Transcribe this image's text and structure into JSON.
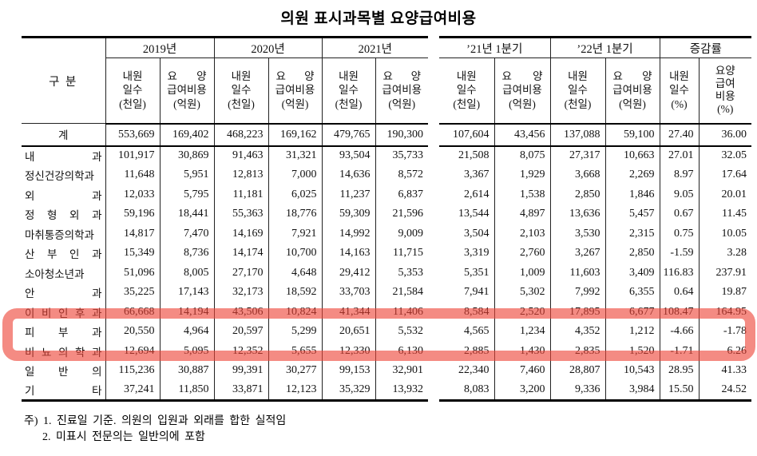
{
  "title": "의원 표시과목별 요양급여비용",
  "table": {
    "row_header": "구 분",
    "groups": [
      "2019년",
      "2020년",
      "2021년",
      "’21년 1분기",
      "’22년 1분기",
      "증감률"
    ],
    "sub_visit": [
      "내원",
      "일수",
      "(천일)"
    ],
    "sub_cost": [
      "요 양",
      "급여비용",
      "(억원)"
    ],
    "sub_visit_pct": [
      "내원",
      "일수",
      "(%)"
    ],
    "sub_cost_pct": [
      "요양",
      "급여",
      "비용",
      "(%)"
    ],
    "total_label": "계",
    "total_values": [
      "553,669",
      "169,402",
      "468,223",
      "169,162",
      "479,765",
      "190,300",
      "107,604",
      "43,456",
      "137,088",
      "59,100",
      "27.40",
      "36.00"
    ],
    "rows": [
      {
        "label": "내 과",
        "values": [
          "101,917",
          "30,869",
          "91,463",
          "31,321",
          "93,504",
          "35,733",
          "21,508",
          "8,075",
          "27,317",
          "10,663",
          "27.01",
          "32.05"
        ]
      },
      {
        "label": "정신건강의학과",
        "values": [
          "11,648",
          "5,951",
          "12,813",
          "7,000",
          "14,636",
          "8,572",
          "3,367",
          "1,929",
          "3,668",
          "2,269",
          "8.97",
          "17.64"
        ]
      },
      {
        "label": "외 과",
        "values": [
          "12,033",
          "5,795",
          "11,181",
          "6,025",
          "11,237",
          "6,837",
          "2,614",
          "1,538",
          "2,850",
          "1,846",
          "9.05",
          "20.01"
        ]
      },
      {
        "label": "정 형 외 과",
        "values": [
          "59,196",
          "18,441",
          "55,363",
          "18,776",
          "59,309",
          "21,596",
          "13,544",
          "4,897",
          "13,636",
          "5,457",
          "0.67",
          "11.45"
        ]
      },
      {
        "label": "마취통증의학과",
        "values": [
          "14,817",
          "7,470",
          "14,169",
          "7,921",
          "14,992",
          "9,009",
          "3,504",
          "2,103",
          "3,530",
          "2,315",
          "0.75",
          "10.05"
        ]
      },
      {
        "label": "산 부 인 과",
        "values": [
          "15,349",
          "8,736",
          "14,174",
          "10,700",
          "14,163",
          "11,715",
          "3,319",
          "2,760",
          "3,267",
          "2,850",
          "-1.59",
          "3.28"
        ]
      },
      {
        "label": "소아청소년과",
        "values": [
          "51,096",
          "8,005",
          "27,170",
          "4,648",
          "29,412",
          "5,353",
          "5,351",
          "1,009",
          "11,603",
          "3,409",
          "116.83",
          "237.91"
        ]
      },
      {
        "label": "안 과",
        "values": [
          "35,225",
          "17,143",
          "32,173",
          "18,592",
          "33,703",
          "21,584",
          "7,941",
          "5,302",
          "7,992",
          "6,355",
          "0.64",
          "19.87"
        ]
      },
      {
        "label": "이 비 인 후 과",
        "values": [
          "66,668",
          "14,194",
          "43,506",
          "10,824",
          "41,344",
          "11,406",
          "8,584",
          "2,520",
          "17,895",
          "6,677",
          "108.47",
          "164.95"
        ]
      },
      {
        "label": "피 부 과",
        "values": [
          "20,550",
          "4,964",
          "20,597",
          "5,299",
          "20,651",
          "5,532",
          "4,565",
          "1,234",
          "4,352",
          "1,212",
          "-4.66",
          "-1.78"
        ]
      },
      {
        "label": "비 뇨 의 학 과",
        "values": [
          "12,694",
          "5,095",
          "12,352",
          "5,655",
          "12,330",
          "6,130",
          "2,885",
          "1,430",
          "2,835",
          "1,520",
          "-1.71",
          "6.26"
        ]
      },
      {
        "label": "일 반 의",
        "values": [
          "115,236",
          "30,887",
          "99,391",
          "30,277",
          "99,153",
          "32,901",
          "22,340",
          "7,460",
          "28,807",
          "10,543",
          "28.95",
          "41.33"
        ]
      },
      {
        "label": "기 타",
        "values": [
          "37,241",
          "11,850",
          "33,871",
          "12,123",
          "35,329",
          "13,932",
          "8,083",
          "3,200",
          "9,336",
          "3,984",
          "15.50",
          "24.52"
        ]
      }
    ]
  },
  "annotation": {
    "shape": "rounded-box-marker",
    "color": "#ED4337",
    "covers_rows": [
      "이비인후과",
      "피부과",
      "비뇨의학과"
    ]
  },
  "notes": [
    "주) 1. 진료일 기준. 의원의 입원과 외래를 합한 실적임",
    "2. 미표시 전문의는 일반의에 포함"
  ]
}
